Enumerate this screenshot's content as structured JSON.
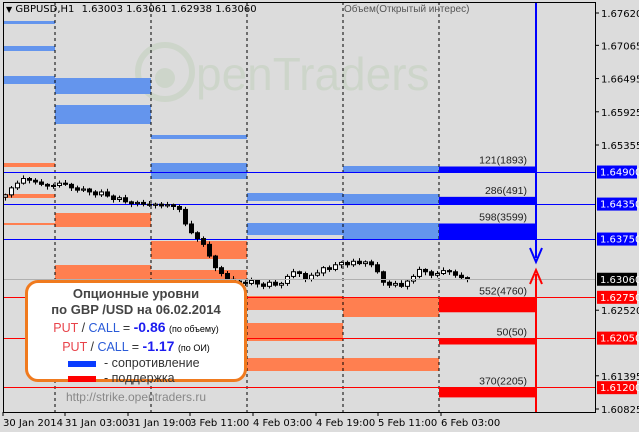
{
  "header": {
    "symbol": "GBPUSD,H1",
    "ohlc": "1.63003 1.63061 1.62938 1.63060",
    "indicator_label": "Объем(Открытый интерес)"
  },
  "watermark": "OpenTraders",
  "colors": {
    "resistance": "#0000ff",
    "support": "#ff0000",
    "resistance_zone": "#6495ed",
    "support_zone": "#ff7f50",
    "background": "#dcdcdc",
    "box_border": "#f07a1e"
  },
  "info_box": {
    "title1": "Опционные уровни",
    "title2": "по GBP /USD на 06.02.2014",
    "put": "PUT",
    "slash": "/",
    "call": "CALL",
    "eq": "=",
    "ratio_volume": "-0.86",
    "ratio_volume_note": "(по объему)",
    "ratio_oi": "-1.17",
    "ratio_oi_note": "(по ОИ)",
    "legend_resistance": "- сопротивление",
    "legend_support": "- поддержка",
    "url": "http://strike.opentraders.ru"
  },
  "chart_data": {
    "type": "candlestick",
    "title": "GBPUSD,H1",
    "ylim": [
      1.6078,
      1.6774
    ],
    "y_ticks": [
      "1.67620",
      "1.67065",
      "1.66495",
      "1.65925",
      "1.65355",
      "1.62520",
      "1.61395",
      "1.60825"
    ],
    "x_ticks": [
      "30 Jan 2014",
      "31 Jan 03:00",
      "31 Jan 19:00",
      "3 Feb 11:00",
      "4 Feb 03:00",
      "4 Feb 19:00",
      "5 Feb 11:00",
      "6 Feb 03:00"
    ],
    "current_price": "1.63060",
    "grid": false,
    "levels": [
      {
        "price": 1.649,
        "label": "1.64900",
        "type": "resistance",
        "annotation": "121(1893)",
        "volume": 121,
        "oi": 1893
      },
      {
        "price": 1.6435,
        "label": "1.64350",
        "type": "resistance",
        "annotation": "286(491)",
        "volume": 286,
        "oi": 491
      },
      {
        "price": 1.6375,
        "label": "1.63750",
        "type": "resistance",
        "annotation": "598(3599)",
        "volume": 598,
        "oi": 3599
      },
      {
        "price": 1.6275,
        "label": "1.62750",
        "type": "support",
        "annotation": "552(4760)",
        "volume": 552,
        "oi": 4760
      },
      {
        "price": 1.6205,
        "label": "1.62050",
        "type": "support",
        "annotation": "50(50)",
        "volume": 50,
        "oi": 50
      },
      {
        "price": 1.612,
        "label": "1.61200",
        "type": "support",
        "annotation": "370(2205)",
        "volume": 370,
        "oi": 2205
      }
    ],
    "closes": [
      1.645,
      1.6462,
      1.647,
      1.6478,
      1.6475,
      1.6472,
      1.6468,
      1.6465,
      1.6466,
      1.647,
      1.6468,
      1.6462,
      1.6458,
      1.646,
      1.6455,
      1.645,
      1.6455,
      1.6448,
      1.6442,
      1.6445,
      1.6438,
      1.6435,
      1.6437,
      1.6434,
      1.6432,
      1.6434,
      1.6431,
      1.6433,
      1.643,
      1.6425,
      1.64,
      1.6385,
      1.6375,
      1.6365,
      1.6345,
      1.6325,
      1.6315,
      1.6305,
      1.6302,
      1.63,
      1.6298,
      1.6303,
      1.6297,
      1.6293,
      1.63,
      1.6295,
      1.6298,
      1.631,
      1.6318,
      1.6315,
      1.6305,
      1.6312,
      1.6316,
      1.6325,
      1.6322,
      1.633,
      1.6334,
      1.633,
      1.6336,
      1.6332,
      1.6335,
      1.633,
      1.6318,
      1.63,
      1.6295,
      1.6298,
      1.6293,
      1.6302,
      1.631,
      1.6322,
      1.6318,
      1.6312,
      1.6315,
      1.632,
      1.6318,
      1.6312,
      1.6308,
      1.6306
    ]
  }
}
